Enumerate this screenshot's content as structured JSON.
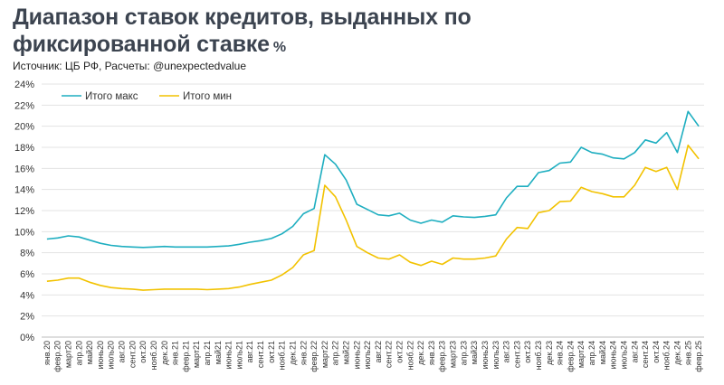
{
  "title": {
    "line1": "Диапазон ставок кредитов, выданных по",
    "line2": "фиксированной ставке",
    "unit": "%"
  },
  "source": "Источник: ЦБ РФ, Расчеты: @unexpectedvalue",
  "colors": {
    "max": "#1eaec0",
    "min": "#f2c200",
    "grid": "#e3e3e3"
  },
  "chart_data": {
    "type": "line",
    "title": "Диапазон ставок кредитов, выданных по фиксированной ставке %",
    "xlabel": "",
    "ylabel": "",
    "ylim": [
      0,
      24
    ],
    "yticks": [
      "0%",
      "2%",
      "4%",
      "6%",
      "8%",
      "10%",
      "12%",
      "14%",
      "16%",
      "18%",
      "20%",
      "22%",
      "24%"
    ],
    "grid": "horizontal",
    "legend_position": "top-left",
    "categories": [
      "янв.20",
      "февр.20",
      "март20",
      "апр.20",
      "май20",
      "июнь20",
      "июль20",
      "авг.20",
      "сент.20",
      "окт.20",
      "нояб.20",
      "дек.20",
      "янв.21",
      "февр.21",
      "март21",
      "апр.21",
      "май21",
      "июнь21",
      "июль21",
      "авг.21",
      "сент.21",
      "окт.21",
      "нояб.21",
      "дек.21",
      "янв.22",
      "февр.22",
      "март22",
      "апр.22",
      "май22",
      "июнь22",
      "июль22",
      "авг.22",
      "сент.22",
      "окт.22",
      "нояб.22",
      "дек.22",
      "янв.23",
      "февр.23",
      "март23",
      "апр.23",
      "май23",
      "июнь23",
      "июль23",
      "авг.23",
      "сент.23",
      "окт.23",
      "нояб.23",
      "дек.23",
      "янв.24",
      "февр.24",
      "март24",
      "апр.24",
      "май24",
      "июнь24",
      "июль24",
      "авг.24",
      "сент.24",
      "окт.24",
      "нояб.24",
      "дек.24",
      "янв.25",
      "февр.25"
    ],
    "series": [
      {
        "name": "Итого макс",
        "color": "#1eaec0",
        "values": [
          9.3,
          9.4,
          9.6,
          9.5,
          9.2,
          8.9,
          8.7,
          8.6,
          8.55,
          8.5,
          8.55,
          8.6,
          8.55,
          8.55,
          8.55,
          8.55,
          8.6,
          8.65,
          8.8,
          9.0,
          9.15,
          9.35,
          9.8,
          10.5,
          11.7,
          12.2,
          17.3,
          16.4,
          14.9,
          12.6,
          12.1,
          11.6,
          11.5,
          11.75,
          11.1,
          10.8,
          11.1,
          10.9,
          11.5,
          11.4,
          11.35,
          11.45,
          11.6,
          13.2,
          14.3,
          14.3,
          15.6,
          15.8,
          16.5,
          16.6,
          18.0,
          17.5,
          17.35,
          17.0,
          16.9,
          17.5,
          18.7,
          18.4,
          19.4,
          17.5,
          21.4,
          20.0
        ]
      },
      {
        "name": "Итого мин",
        "color": "#f2c200",
        "values": [
          5.3,
          5.4,
          5.6,
          5.6,
          5.2,
          4.9,
          4.7,
          4.6,
          4.55,
          4.45,
          4.5,
          4.55,
          4.55,
          4.55,
          4.55,
          4.5,
          4.55,
          4.6,
          4.75,
          5.0,
          5.2,
          5.4,
          5.9,
          6.6,
          7.8,
          8.2,
          14.4,
          13.3,
          11.1,
          8.6,
          8.0,
          7.5,
          7.4,
          7.8,
          7.1,
          6.8,
          7.2,
          6.9,
          7.5,
          7.4,
          7.4,
          7.5,
          7.7,
          9.3,
          10.4,
          10.3,
          11.8,
          12.0,
          12.85,
          12.9,
          14.2,
          13.8,
          13.6,
          13.3,
          13.3,
          14.4,
          16.1,
          15.7,
          16.1,
          14.0,
          18.2,
          16.9
        ]
      }
    ]
  }
}
